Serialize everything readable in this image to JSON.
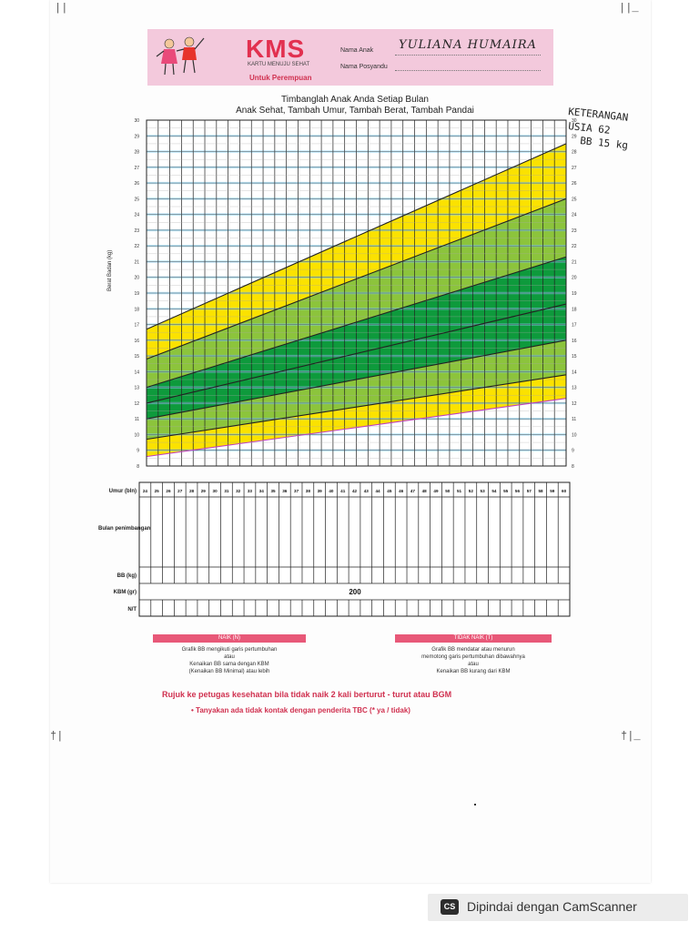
{
  "corner_marks": {
    "top_left": "||",
    "top_right": "||_",
    "mid_left": "†|",
    "mid_right": "†|_"
  },
  "header": {
    "logo": "KMS",
    "logo_sub": "KARTU MENUJU SEHAT",
    "gender": "Untuk Perempuan",
    "name_label": "Nama Anak",
    "name_value": "YULIANA HUMAIRA",
    "posyandu_label": "Nama Posyandu"
  },
  "titles": {
    "line1": "Timbanglah Anak Anda Setiap Bulan",
    "line2": "Anak Sehat, Tambah Umur, Tambah Berat, Tambah Pandai"
  },
  "handwritten_note": [
    "KETERANGAN",
    "USIA 62",
    "BB 15 kg"
  ],
  "chart_data": {
    "type": "area",
    "ylabel": "Berat Badan (kg)",
    "ylim": [
      8,
      30
    ],
    "yticks": [
      8,
      9,
      10,
      11,
      12,
      13,
      14,
      15,
      16,
      17,
      18,
      19,
      20,
      21,
      22,
      23,
      24,
      25,
      26,
      27,
      28,
      29,
      30
    ],
    "x_months": [
      24,
      25,
      26,
      27,
      28,
      29,
      30,
      31,
      32,
      33,
      34,
      35,
      36,
      37,
      38,
      39,
      40,
      41,
      42,
      43,
      44,
      45,
      46,
      47,
      48,
      49,
      50,
      51,
      52,
      53,
      54,
      55,
      56,
      57,
      58,
      59,
      60
    ],
    "bands": [
      {
        "color": "#fbe200",
        "lower": [
          8.6,
          12.3
        ],
        "upper": [
          16.7,
          28.5
        ]
      },
      {
        "color": "#8cc43c",
        "lower": [
          9.7,
          13.8
        ],
        "upper": [
          14.8,
          25.0
        ]
      },
      {
        "color": "#0e9a3c",
        "lower": [
          11.0,
          16.0
        ],
        "upper": [
          13.0,
          21.3
        ]
      }
    ],
    "lines": [
      {
        "color": "#222222",
        "start": 16.7,
        "end": 28.5
      },
      {
        "color": "#222222",
        "start": 14.8,
        "end": 25.0
      },
      {
        "color": "#222222",
        "start": 13.0,
        "end": 21.3
      },
      {
        "color": "#222222",
        "start": 12.0,
        "end": 18.3
      },
      {
        "color": "#222222",
        "start": 11.0,
        "end": 16.0
      },
      {
        "color": "#222222",
        "start": 9.7,
        "end": 13.8
      },
      {
        "color": "#c040c0",
        "start": 8.6,
        "end": 12.3
      }
    ]
  },
  "table": {
    "row_labels": [
      "Umur (bln)",
      "Bulan penimbangan",
      "BB (kg)",
      "KBM (gr)",
      "N/T"
    ],
    "kbm_value": "200"
  },
  "legend": {
    "naik_title": "NAIK (N)",
    "naik_lines": [
      "Grafik BB mengikuti garis pertumbuhan",
      "atau",
      "Kenaikan BB sama dengan KBM",
      "(Kenaikan BB Minimal) atau lebih"
    ],
    "tidak_naik_title": "TIDAK NAIK (T)",
    "tidak_naik_lines": [
      "Grafik BB mendatar atau menurun",
      "memotong garis pertumbuhan dibawahnya",
      "atau",
      "Kenaikan BB kurang dari KBM"
    ]
  },
  "footer": {
    "refer": "Rujuk ke petugas kesehatan bila tidak naik 2 kali berturut - turut atau BGM",
    "ask": "•  Tanyakan ada tidak kontak dengan penderita TBC (* ya / tidak)"
  },
  "camscanner": {
    "icon": "CS",
    "text": "Dipindai dengan CamScanner"
  }
}
